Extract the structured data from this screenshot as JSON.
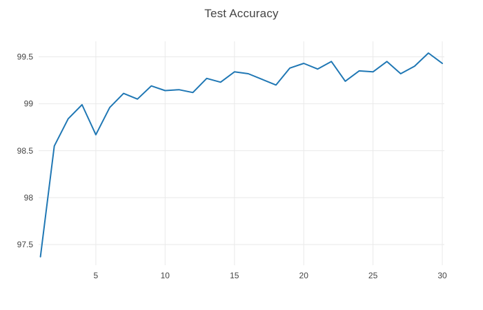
{
  "page": {
    "title": "Test Accuracy"
  },
  "chart_data": {
    "type": "line",
    "title": "Test Accuracy",
    "xlabel": "",
    "ylabel": "",
    "x": [
      1,
      2,
      3,
      4,
      5,
      6,
      7,
      8,
      9,
      10,
      11,
      12,
      13,
      14,
      15,
      16,
      17,
      18,
      19,
      20,
      21,
      22,
      23,
      24,
      25,
      26,
      27,
      28,
      29,
      30
    ],
    "series": [
      {
        "name": "test-accuracy",
        "values": [
          97.37,
          98.55,
          98.84,
          98.99,
          98.67,
          98.96,
          99.11,
          99.05,
          99.19,
          99.14,
          99.15,
          99.12,
          99.27,
          99.23,
          99.34,
          99.32,
          99.26,
          99.2,
          99.38,
          99.43,
          99.37,
          99.45,
          99.24,
          99.35,
          99.34,
          99.45,
          99.32,
          99.4,
          99.54,
          99.43
        ]
      }
    ],
    "xlim": [
      0.87,
      30.15
    ],
    "ylim": [
      97.28,
      99.665
    ],
    "x_ticks": [
      5,
      10,
      15,
      20,
      25,
      30
    ],
    "x_tick_labels": [
      "5",
      "10",
      "15",
      "20",
      "25",
      "30"
    ],
    "y_ticks": [
      97.5,
      98,
      98.5,
      99,
      99.5
    ],
    "y_tick_labels": [
      "97.5",
      "98",
      "98.5",
      "99",
      "99.5"
    ],
    "grid": true,
    "legend": false,
    "colors": {
      "line": "#1f77b4",
      "grid": "#e9e9e9",
      "text": "#444444",
      "background": "#ffffff"
    }
  }
}
